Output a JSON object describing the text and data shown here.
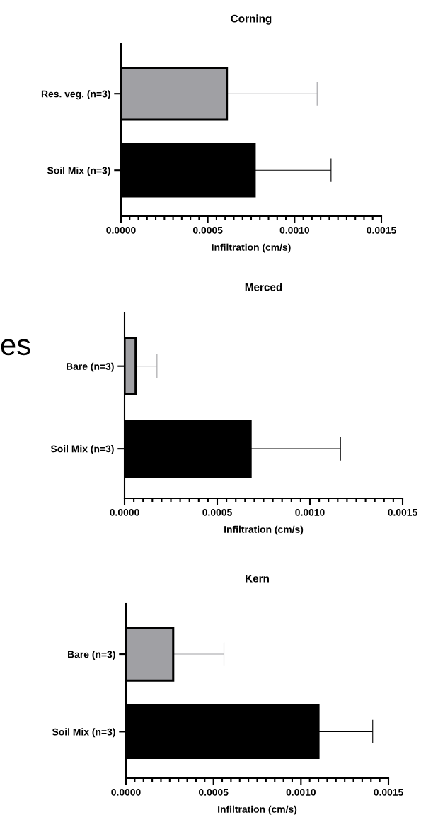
{
  "chart_data": [
    {
      "type": "bar",
      "orientation": "horizontal",
      "title": "Corning",
      "xlabel": "Infiltration (cm/s)",
      "categories": [
        "Res. veg. (n=3)",
        "Soil Mix (n=3)"
      ],
      "values": [
        0.00061,
        0.00077
      ],
      "errors": [
        [
          0.00061,
          0.00113
        ],
        [
          0.00077,
          0.00121
        ]
      ],
      "colors": [
        "#a0a0a4",
        "#000000"
      ],
      "xlim": [
        0,
        0.0015
      ],
      "xticks": [
        "0.0000",
        {
          "value": 5e-05,
          "label": null
        },
        {
          "value": 0.0001,
          "label": null
        },
        {
          "value": 0.00015,
          "label": null
        },
        {
          "value": 0.0002,
          "label": null
        },
        {
          "value": 0.00025,
          "label": null
        },
        {
          "value": 0.0003,
          "label": null
        },
        {
          "value": 0.00035,
          "label": null
        },
        {
          "value": 0.0004,
          "label": null
        },
        {
          "value": 0.00045,
          "label": null
        },
        {
          "value": 0.0005,
          "label": "0.0005"
        },
        {
          "value": 0.00055,
          "label": null
        },
        {
          "value": 0.0006,
          "label": null
        },
        {
          "value": 0.00065,
          "label": null
        },
        {
          "value": 0.0007,
          "label": null
        },
        {
          "value": 0.00075,
          "label": null
        },
        {
          "value": 0.0008,
          "label": null
        },
        {
          "value": 0.00085,
          "label": null
        },
        {
          "value": 0.0009,
          "label": null
        },
        {
          "value": 0.00095,
          "label": null
        },
        {
          "value": 0.001,
          "label": "0.0010"
        },
        {
          "value": 0.00105,
          "label": null
        },
        {
          "value": 0.0011,
          "label": null
        },
        {
          "value": 0.00115,
          "label": null
        },
        {
          "value": 0.0012,
          "label": null
        },
        {
          "value": 0.00125,
          "label": null
        },
        {
          "value": 0.0013,
          "label": null
        },
        {
          "value": 0.00135,
          "label": null
        },
        {
          "value": 0.0014,
          "label": null
        },
        {
          "value": 0.00145,
          "label": null
        },
        {
          "value": 0.0015,
          "label": "0.0015"
        }
      ],
      "grid": false
    },
    {
      "type": "bar",
      "orientation": "horizontal",
      "title": "Merced",
      "xlabel": "Infiltration (cm/s)",
      "categories": [
        "Bare (n=3)",
        "Soil Mix (n=3)"
      ],
      "values": [
        6e-05,
        0.00068
      ],
      "errors": [
        [
          6e-05,
          0.000175
        ],
        [
          0.00068,
          0.001165
        ]
      ],
      "colors": [
        "#a0a0a4",
        "#000000"
      ],
      "xlim": [
        0,
        0.0015
      ],
      "xticks": [
        {
          "value": 0,
          "label": "0.0000"
        },
        {
          "value": 5e-05,
          "label": null
        },
        {
          "value": 0.0001,
          "label": null
        },
        {
          "value": 0.00015,
          "label": null
        },
        {
          "value": 0.0002,
          "label": null
        },
        {
          "value": 0.00025,
          "label": null
        },
        {
          "value": 0.0003,
          "label": null
        },
        {
          "value": 0.00035,
          "label": null
        },
        {
          "value": 0.0004,
          "label": null
        },
        {
          "value": 0.00045,
          "label": null
        },
        {
          "value": 0.0005,
          "label": "0.0005"
        },
        {
          "value": 0.00055,
          "label": null
        },
        {
          "value": 0.0006,
          "label": null
        },
        {
          "value": 0.00065,
          "label": null
        },
        {
          "value": 0.0007,
          "label": null
        },
        {
          "value": 0.00075,
          "label": null
        },
        {
          "value": 0.0008,
          "label": null
        },
        {
          "value": 0.00085,
          "label": null
        },
        {
          "value": 0.0009,
          "label": null
        },
        {
          "value": 0.00095,
          "label": null
        },
        {
          "value": 0.001,
          "label": "0.0010"
        },
        {
          "value": 0.00105,
          "label": null
        },
        {
          "value": 0.0011,
          "label": null
        },
        {
          "value": 0.00115,
          "label": null
        },
        {
          "value": 0.0012,
          "label": null
        },
        {
          "value": 0.00125,
          "label": null
        },
        {
          "value": 0.0013,
          "label": null
        },
        {
          "value": 0.00135,
          "label": null
        },
        {
          "value": 0.0014,
          "label": null
        },
        {
          "value": 0.00145,
          "label": null
        },
        {
          "value": 0.0015,
          "label": "0.0015"
        }
      ],
      "grid": false,
      "annotations": [
        "es"
      ]
    },
    {
      "type": "bar",
      "orientation": "horizontal",
      "title": "Kern",
      "xlabel": "Infiltration (cm/s)",
      "categories": [
        "Bare (n=3)",
        "Soil Mix (n=3)"
      ],
      "values": [
        0.00027,
        0.0011
      ],
      "errors": [
        [
          0.00027,
          0.00056
        ],
        [
          0.0011,
          0.00141
        ]
      ],
      "colors": [
        "#a0a0a4",
        "#000000"
      ],
      "xlim": [
        0,
        0.0015
      ],
      "xticks": [
        {
          "value": 0,
          "label": "0.0000"
        },
        {
          "value": 5e-05,
          "label": null
        },
        {
          "value": 0.0001,
          "label": null
        },
        {
          "value": 0.00015,
          "label": null
        },
        {
          "value": 0.0002,
          "label": null
        },
        {
          "value": 0.00025,
          "label": null
        },
        {
          "value": 0.0003,
          "label": null
        },
        {
          "value": 0.00035,
          "label": null
        },
        {
          "value": 0.0004,
          "label": null
        },
        {
          "value": 0.00045,
          "label": null
        },
        {
          "value": 0.0005,
          "label": "0.0005"
        },
        {
          "value": 0.00055,
          "label": null
        },
        {
          "value": 0.0006,
          "label": null
        },
        {
          "value": 0.00065,
          "label": null
        },
        {
          "value": 0.0007,
          "label": null
        },
        {
          "value": 0.00075,
          "label": null
        },
        {
          "value": 0.0008,
          "label": null
        },
        {
          "value": 0.00085,
          "label": null
        },
        {
          "value": 0.0009,
          "label": null
        },
        {
          "value": 0.00095,
          "label": null
        },
        {
          "value": 0.001,
          "label": "0.0010"
        },
        {
          "value": 0.00105,
          "label": null
        },
        {
          "value": 0.0011,
          "label": null
        },
        {
          "value": 0.00115,
          "label": null
        },
        {
          "value": 0.0012,
          "label": null
        },
        {
          "value": 0.00125,
          "label": null
        },
        {
          "value": 0.0013,
          "label": null
        },
        {
          "value": 0.00135,
          "label": null
        },
        {
          "value": 0.0014,
          "label": null
        },
        {
          "value": 0.00145,
          "label": null
        },
        {
          "value": 0.0015,
          "label": "0.0015"
        }
      ],
      "grid": false
    }
  ]
}
